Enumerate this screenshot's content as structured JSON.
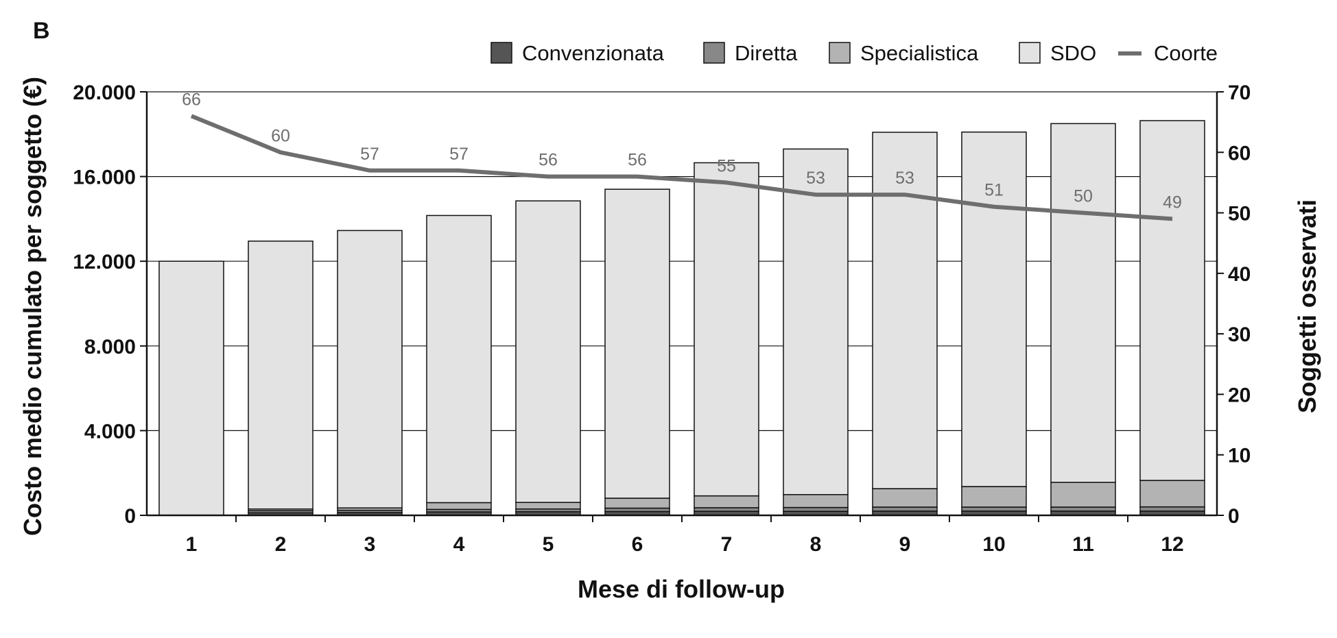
{
  "panel_label": "B",
  "chart_data": {
    "type": "bar",
    "stacked": true,
    "categories": [
      "1",
      "2",
      "3",
      "4",
      "5",
      "6",
      "7",
      "8",
      "9",
      "10",
      "11",
      "12"
    ],
    "xlabel": "Mese di follow-up",
    "ylabel": "Costo medio cumulato per soggetto (€)",
    "y2label": "Soggetti osservati",
    "ylim": [
      0,
      20000
    ],
    "y2lim": [
      0,
      70
    ],
    "y_ticks": [
      "0",
      "4.000",
      "8.000",
      "12.000",
      "16.000",
      "20.000"
    ],
    "y_tick_values": [
      0,
      4000,
      8000,
      12000,
      16000,
      20000
    ],
    "y2_ticks": [
      "0",
      "10",
      "20",
      "30",
      "40",
      "50",
      "60",
      "70"
    ],
    "y2_tick_values": [
      0,
      10,
      20,
      30,
      40,
      50,
      60,
      70
    ],
    "grid": true,
    "legend_position": "top-right",
    "series": [
      {
        "name": "Convenzionata",
        "color": "#555555",
        "values": [
          0,
          120,
          130,
          160,
          170,
          180,
          190,
          190,
          200,
          200,
          200,
          200
        ]
      },
      {
        "name": "Diretta",
        "color": "#888888",
        "values": [
          0,
          100,
          110,
          120,
          130,
          160,
          170,
          180,
          190,
          190,
          190,
          200
        ]
      },
      {
        "name": "Specialistica",
        "color": "#b3b3b3",
        "values": [
          0,
          80,
          110,
          320,
          310,
          470,
          560,
          610,
          870,
          970,
          1170,
          1250
        ]
      },
      {
        "name": "SDO",
        "color": "#e3e3e3",
        "values": [
          12000,
          12650,
          13100,
          13560,
          14240,
          14590,
          15730,
          16320,
          16830,
          16740,
          16940,
          16990
        ]
      }
    ],
    "line_series": {
      "name": "Coorte",
      "color": "#6e6e6e",
      "axis": "right",
      "values": [
        66,
        60,
        57,
        57,
        56,
        56,
        55,
        53,
        53,
        51,
        50,
        49
      ],
      "labels": [
        "66",
        "60",
        "57",
        "57",
        "56",
        "56",
        "55",
        "53",
        "53",
        "51",
        "50",
        "49"
      ]
    }
  }
}
